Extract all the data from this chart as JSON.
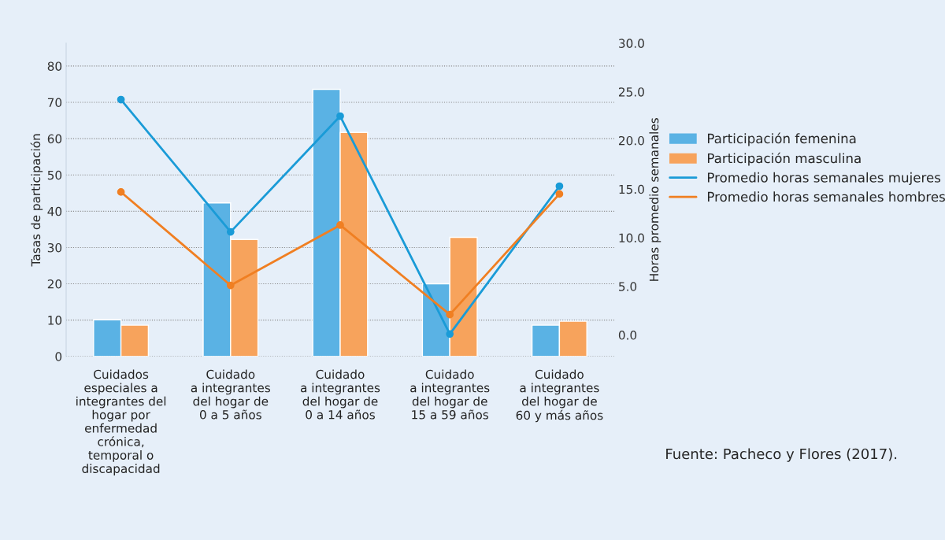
{
  "chart_data": {
    "type": "bar",
    "categories": [
      "Cuidados\nespeciales a\nintegrantes del\nhogar por\nenfermedad\ncrónica,\ntemporal o\ndiscapacidad",
      "Cuidado\na integrantes\ndel hogar de\n0 a 5 años",
      "Cuidado\na integrantes\ndel hogar de\n0 a 14 años",
      "Cuidado\na integrantes\ndel hogar de\n15 a 59 años",
      "Cuidado\na integrantes\ndel hogar de\n60 y más años"
    ],
    "series": [
      {
        "name": "Participación femenina",
        "color": "#5ab2e4",
        "values": [
          10.1,
          42.3,
          73.6,
          20.0,
          8.6
        ]
      },
      {
        "name": "Participación masculina",
        "color": "#f7a35c",
        "values": [
          8.6,
          32.2,
          61.7,
          32.8,
          9.7
        ]
      },
      {
        "name": "Promedio horas semanales mujeres",
        "type": "line",
        "axis": "y2",
        "color": "#1a9bd7",
        "values": [
          24.2,
          10.6,
          22.5,
          0.1,
          15.3
        ]
      },
      {
        "name": "Promedio horas semanales hombres",
        "type": "line",
        "axis": "y2",
        "color": "#f07f22",
        "values": [
          14.7,
          5.1,
          11.3,
          2.1,
          14.5
        ]
      }
    ],
    "ylabel": "Tasas de participación",
    "y2label": "Horas promedio semanales",
    "ylim": [
      0,
      86.3
    ],
    "yticks": [
      0,
      10,
      20,
      30,
      40,
      50,
      60,
      70,
      80
    ],
    "y2lim": [
      -2.2,
      30
    ],
    "y2ticks": [
      {
        "value": 0,
        "label": "0.0"
      },
      {
        "value": 5,
        "label": "5.0"
      },
      {
        "value": 10,
        "label": "10.0"
      },
      {
        "value": 15,
        "label": "15.0"
      },
      {
        "value": 20,
        "label": "20.0"
      },
      {
        "value": 25,
        "label": "25.0"
      },
      {
        "value": 30,
        "label": "30.0"
      }
    ],
    "grid": "y",
    "legend": "right",
    "marker": "circle",
    "annotations": [
      "Fuente: Pacheco y Flores (2017)."
    ]
  }
}
